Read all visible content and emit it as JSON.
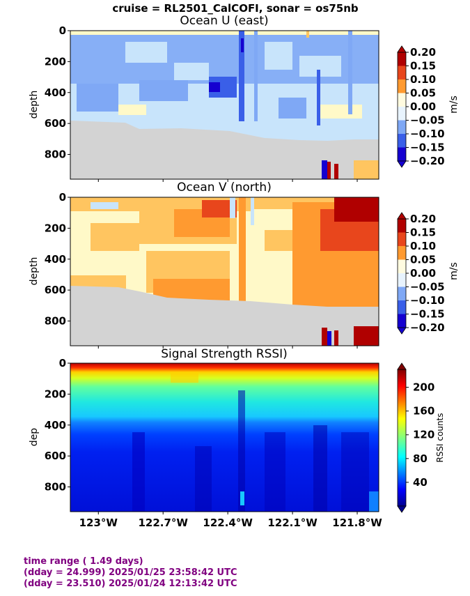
{
  "figure_title": "cruise = RL2501_CalCOFI,  sonar = os75nb",
  "footer": {
    "line1": "time range ( 1.49 days)",
    "line2": "(dday = 24.999) 2025/01/25 23:58:42 UTC",
    "line3": "(dday = 23.510) 2025/01/24 12:13:42 UTC"
  },
  "chart_data": [
    {
      "type": "heatmap",
      "title": "Ocean U (east)",
      "ylabel": "depth",
      "y_ticks": [
        "0",
        "200",
        "400",
        "600",
        "800"
      ],
      "y_tick_values": [
        0,
        200,
        400,
        600,
        800
      ],
      "ylim": [
        960,
        0
      ],
      "xlim": [
        -123.13,
        -121.7
      ],
      "x_ticks": [
        -123.0,
        -122.7,
        -122.4,
        -122.1,
        -121.8
      ],
      "colorbar": {
        "label": "m/s",
        "ticks": [
          "0.20",
          "0.15",
          "0.10",
          "0.05",
          "0.00",
          "−0.05",
          "−0.10",
          "−0.15",
          "−0.20"
        ],
        "range": [
          -0.2,
          0.2
        ],
        "extend": "both",
        "colors": [
          "#1500d0",
          "#3a5fe8",
          "#7fa8f5",
          "#c8e4fb",
          "#fff9c8",
          "#ffc560",
          "#ff9a30",
          "#e8461c",
          "#b00000"
        ]
      },
      "field_note": "mostly weak westward (negative) flow; bottom-masked below ~600-700 m",
      "mask_color": "#d3d3d3"
    },
    {
      "type": "heatmap",
      "title": "Ocean V (north)",
      "ylabel": "depth",
      "y_ticks": [
        "0",
        "200",
        "400",
        "600",
        "800"
      ],
      "y_tick_values": [
        0,
        200,
        400,
        600,
        800
      ],
      "ylim": [
        960,
        0
      ],
      "xlim": [
        -123.13,
        -121.7
      ],
      "colorbar": {
        "label": "m/s",
        "ticks": [
          "0.20",
          "0.15",
          "0.10",
          "0.05",
          "0.00",
          "−0.05",
          "−0.10",
          "−0.15",
          "−0.20"
        ],
        "range": [
          -0.2,
          0.2
        ],
        "extend": "both",
        "colors": [
          "#1500d0",
          "#3a5fe8",
          "#7fa8f5",
          "#c8e4fb",
          "#fff9c8",
          "#ffc560",
          "#ff9a30",
          "#e8461c",
          "#b00000"
        ]
      },
      "mask_color": "#d3d3d3"
    },
    {
      "type": "heatmap",
      "title": "Signal Strength RSSI)",
      "ylabel": "dep",
      "y_ticks": [
        "0",
        "200",
        "400",
        "600",
        "800"
      ],
      "y_tick_values": [
        0,
        200,
        400,
        600,
        800
      ],
      "ylim": [
        960,
        0
      ],
      "xlim": [
        -123.13,
        -121.7
      ],
      "x_tick_labels": [
        "123°W",
        "122.7°W",
        "122.4°W",
        "122.1°W",
        "121.8°W"
      ],
      "x_ticks": [
        -123.0,
        -122.7,
        -122.4,
        -122.1,
        -121.8
      ],
      "colorbar": {
        "label": "RSSI counts",
        "ticks": [
          "200",
          "160",
          "120",
          "80",
          "40"
        ],
        "tick_values": [
          200,
          160,
          120,
          80,
          40
        ],
        "range": [
          0,
          230
        ],
        "extend": "both",
        "colormap": "jet"
      },
      "depth_profile": [
        {
          "depth": 0,
          "rssi": 215
        },
        {
          "depth": 40,
          "rssi": 180
        },
        {
          "depth": 90,
          "rssi": 145
        },
        {
          "depth": 150,
          "rssi": 115
        },
        {
          "depth": 250,
          "rssi": 90
        },
        {
          "depth": 340,
          "rssi": 80
        },
        {
          "depth": 400,
          "rssi": 50
        },
        {
          "depth": 550,
          "rssi": 35
        },
        {
          "depth": 960,
          "rssi": 28
        }
      ]
    }
  ]
}
